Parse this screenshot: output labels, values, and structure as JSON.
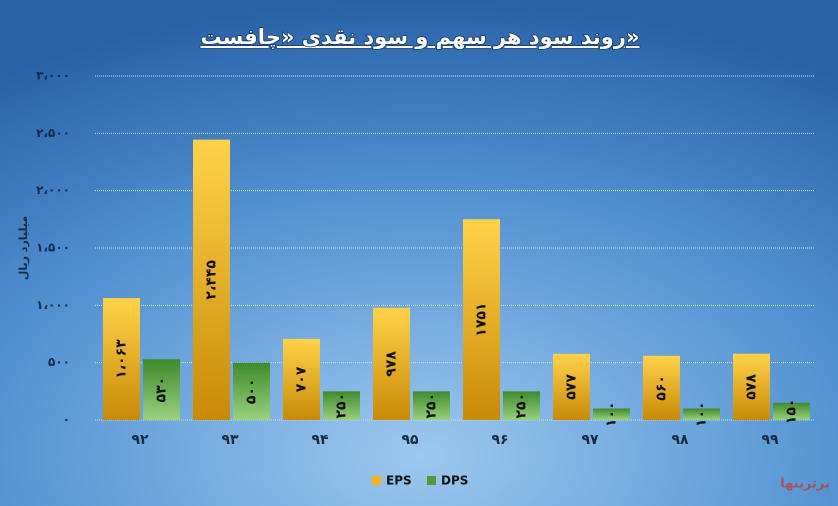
{
  "chart_data": {
    "type": "bar",
    "title": "روند سود هر سهم و سود نقدی «چافست»",
    "y_label": "میلیارد ریال",
    "watermark": "برترینها",
    "categories": [
      "۹۲",
      "۹۳",
      "۹۴",
      "۹۵",
      "۹۶",
      "۹۷",
      "۹۸",
      "۹۹"
    ],
    "series": [
      {
        "name": "EPS",
        "color": "#f2b51c",
        "values": [
          1063,
          2445,
          707,
          978,
          1751,
          577,
          560,
          578
        ],
        "value_labels": [
          "۱،۰۶۳",
          "۲،۴۴۵",
          "۷۰۷",
          "۹۷۸",
          "۱۷۵۱",
          "۵۷۷",
          "۵۶۰",
          "۵۷۸"
        ]
      },
      {
        "name": "DPS",
        "color": "#4e9a3a",
        "values": [
          530,
          500,
          250,
          250,
          250,
          100,
          100,
          150
        ],
        "value_labels": [
          "۵۳۰",
          "۵۰۰",
          "۲۵۰",
          "۲۵۰",
          "۲۵۰",
          "۱۰۰",
          "۱۰۰",
          "۱۵۰"
        ]
      }
    ],
    "ylim": [
      0,
      3000
    ],
    "yticks": [
      {
        "value": 0,
        "label": "۰"
      },
      {
        "value": 500,
        "label": "۵۰۰"
      },
      {
        "value": 1000,
        "label": "۱،۰۰۰"
      },
      {
        "value": 1500,
        "label": "۱،۵۰۰"
      },
      {
        "value": 2000,
        "label": "۲،۰۰۰"
      },
      {
        "value": 2500,
        "label": "۲،۵۰۰"
      },
      {
        "value": 3000,
        "label": "۳،۰۰۰"
      }
    ],
    "grid": true,
    "legend": "bottom"
  }
}
